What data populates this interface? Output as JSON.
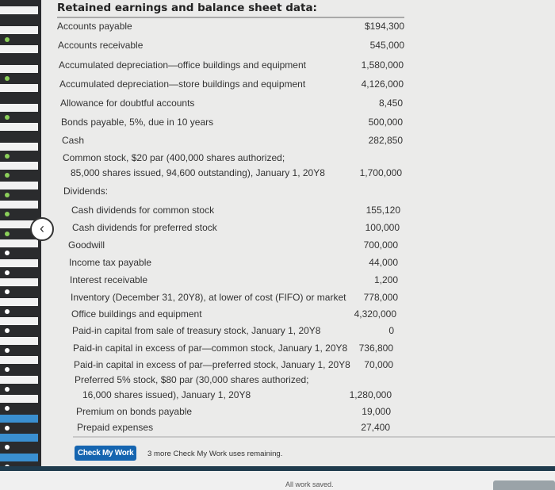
{
  "title": "Retained earnings and balance sheet data:",
  "rows": [
    {
      "label": "Accounts payable",
      "value": "$194,300"
    },
    {
      "label": "Accounts receivable",
      "value": "545,000"
    },
    {
      "label": "Accumulated depreciation—office buildings and equipment",
      "value": "1,580,000"
    },
    {
      "label": "Accumulated depreciation—store buildings and equipment",
      "value": "4,126,000"
    },
    {
      "label": "Allowance for doubtful accounts",
      "value": "8,450"
    },
    {
      "label": "Bonds payable, 5%, due in 10 years",
      "value": "500,000"
    },
    {
      "label": "Cash",
      "value": "282,850"
    },
    {
      "label": "Common stock, $20 par (400,000 shares authorized;\n   85,000 shares issued, 94,600 outstanding), January 1, 20Y8",
      "value": "1,700,000"
    },
    {
      "label": "Dividends:",
      "value": ""
    },
    {
      "label": "Cash dividends for common stock",
      "value": "155,120",
      "sub": true
    },
    {
      "label": "Cash dividends for preferred stock",
      "value": "100,000",
      "sub": true
    },
    {
      "label": "Goodwill",
      "value": "700,000"
    },
    {
      "label": "Income tax payable",
      "value": "44,000"
    },
    {
      "label": "Interest receivable",
      "value": "1,200"
    },
    {
      "label": "Inventory (December 31, 20Y8), at lower of cost (FIFO) or market",
      "value": "778,000"
    },
    {
      "label": "Office buildings and equipment",
      "value": "4,320,000"
    },
    {
      "label": "Paid-in capital from sale of treasury stock, January 1, 20Y8",
      "value": "0"
    },
    {
      "label": "Paid-in capital in excess of par—common stock, January 1, 20Y8",
      "value": "736,800"
    },
    {
      "label": "Paid-in capital in excess of par—preferred stock, January 1, 20Y8",
      "value": "70,000"
    },
    {
      "label": "Preferred 5% stock, $80 par (30,000 shares authorized;\n   16,000 shares issued), January 1, 20Y8",
      "value": "1,280,000"
    },
    {
      "label": "Premium on bonds payable",
      "value": "19,000"
    },
    {
      "label": "Prepaid expenses",
      "value": "27,400"
    }
  ],
  "check_button": "Check My Work",
  "remaining": "3 more Check My Work uses remaining.",
  "footer_status": "All work saved.",
  "back_icon": "chevron-left-icon",
  "colors": {
    "button": "#1565b0",
    "sidebar": "#2a2b2d",
    "dot": "#8ccf5a"
  }
}
